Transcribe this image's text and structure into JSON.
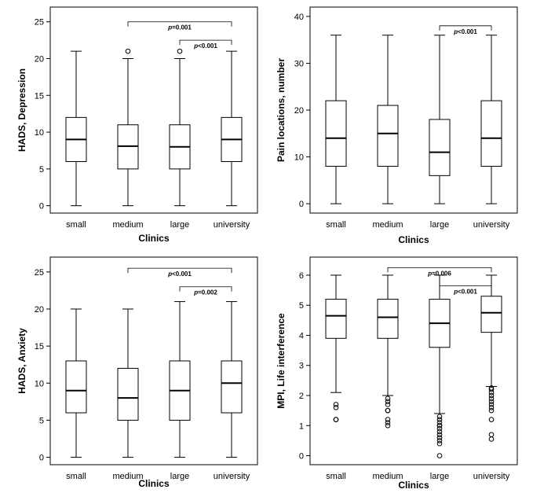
{
  "chart_data": [
    {
      "type": "boxplot",
      "xlabel": "Clinics",
      "ylabel": "HADS, Depression",
      "categories": [
        "small",
        "medium",
        "large",
        "university"
      ],
      "ylim": [
        -1,
        27
      ],
      "yticks": [
        0,
        5,
        10,
        15,
        20,
        25
      ],
      "boxes": [
        {
          "min": 0,
          "q1": 6,
          "median": 9,
          "q3": 12,
          "max": 21,
          "outliers": []
        },
        {
          "min": 0,
          "q1": 5,
          "median": 8.1,
          "q3": 11,
          "max": 20,
          "outliers": [
            21
          ]
        },
        {
          "min": 0,
          "q1": 5,
          "median": 8,
          "q3": 11,
          "max": 20,
          "outliers": [
            21
          ]
        },
        {
          "min": 0,
          "q1": 6,
          "median": 9,
          "q3": 12,
          "max": 21,
          "outliers": []
        }
      ],
      "significance": [
        {
          "from": 1,
          "to": 3,
          "label_prefix": "p",
          "label_value": "=0.001",
          "y": 25
        },
        {
          "from": 2,
          "to": 3,
          "label_prefix": "p",
          "label_value": "<0.001",
          "y": 22.5
        }
      ]
    },
    {
      "type": "boxplot",
      "xlabel": "Clinics",
      "ylabel": "Pain locations, number",
      "categories": [
        "small",
        "medium",
        "large",
        "university"
      ],
      "ylim": [
        -2,
        42
      ],
      "yticks": [
        0,
        10,
        20,
        30,
        40
      ],
      "boxes": [
        {
          "min": 0,
          "q1": 8,
          "median": 14,
          "q3": 22,
          "max": 36,
          "outliers": []
        },
        {
          "min": 0,
          "q1": 8,
          "median": 15,
          "q3": 21,
          "max": 36,
          "outliers": []
        },
        {
          "min": 0,
          "q1": 6,
          "median": 11,
          "q3": 18,
          "max": 36,
          "outliers": []
        },
        {
          "min": 0,
          "q1": 8,
          "median": 14,
          "q3": 22,
          "max": 36,
          "outliers": []
        }
      ],
      "significance": [
        {
          "from": 2,
          "to": 3,
          "label_prefix": "p",
          "label_value": "<0.001",
          "y": 38
        }
      ]
    },
    {
      "type": "boxplot",
      "xlabel": "Clinics",
      "ylabel": "HADS, Anxiety",
      "categories": [
        "small",
        "medium",
        "large",
        "university"
      ],
      "ylim": [
        -1,
        27
      ],
      "yticks": [
        0,
        5,
        10,
        15,
        20,
        25
      ],
      "boxes": [
        {
          "min": 0,
          "q1": 6,
          "median": 9,
          "q3": 13,
          "max": 20,
          "outliers": []
        },
        {
          "min": 0,
          "q1": 5,
          "median": 8,
          "q3": 12,
          "max": 20,
          "outliers": []
        },
        {
          "min": 0,
          "q1": 5,
          "median": 9,
          "q3": 13,
          "max": 21,
          "outliers": []
        },
        {
          "min": 0,
          "q1": 6,
          "median": 10,
          "q3": 13,
          "max": 21,
          "outliers": []
        }
      ],
      "significance": [
        {
          "from": 1,
          "to": 3,
          "label_prefix": "p",
          "label_value": "<0.001",
          "y": 25.5
        },
        {
          "from": 2,
          "to": 3,
          "label_prefix": "p",
          "label_value": "=0.002",
          "y": 23
        }
      ]
    },
    {
      "type": "boxplot",
      "xlabel": "Clinics",
      "ylabel": "MPI, Life interference",
      "categories": [
        "small",
        "medium",
        "large",
        "university"
      ],
      "ylim": [
        -0.3,
        6.6
      ],
      "yticks": [
        0,
        1,
        2,
        3,
        4,
        5,
        6
      ],
      "boxes": [
        {
          "min": 2.1,
          "q1": 3.9,
          "median": 4.65,
          "q3": 5.2,
          "max": 6,
          "outliers": [
            1.2,
            1.2,
            1.6,
            1.7
          ]
        },
        {
          "min": 2.0,
          "q1": 3.9,
          "median": 4.6,
          "q3": 5.2,
          "max": 6,
          "outliers": [
            1.0,
            1.1,
            1.2,
            1.5,
            1.5,
            1.7,
            1.8,
            1.9
          ]
        },
        {
          "min": 1.4,
          "q1": 3.6,
          "median": 4.4,
          "q3": 5.2,
          "max": 6,
          "outliers": [
            0.0,
            0.4,
            0.5,
            0.6,
            0.7,
            0.8,
            0.9,
            1.0,
            1.0,
            1.1,
            1.2,
            1.3
          ]
        },
        {
          "min": 2.3,
          "q1": 4.1,
          "median": 4.75,
          "q3": 5.3,
          "max": 6,
          "outliers": [
            0.55,
            0.7,
            1.2,
            1.5,
            1.6,
            1.7,
            1.8,
            1.9,
            2.0,
            2.1,
            2.2,
            2.25
          ]
        }
      ],
      "significance": [
        {
          "from": 1,
          "to": 3,
          "label_prefix": "p",
          "label_value": "=0.006",
          "y": 6.25
        },
        {
          "from": 2,
          "to": 3,
          "label_prefix": "p",
          "label_value": "<0.001",
          "y": 5.65
        }
      ]
    }
  ]
}
